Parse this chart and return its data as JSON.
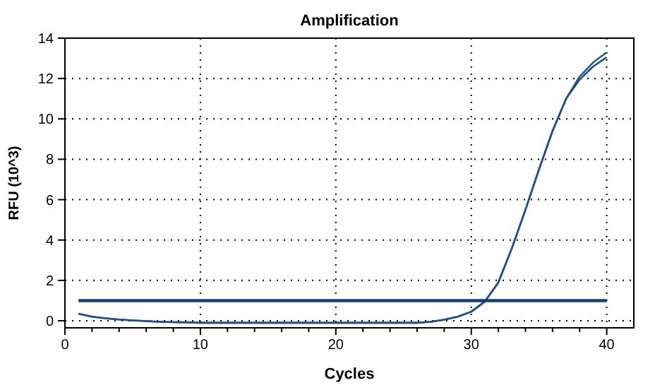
{
  "chart_data": {
    "type": "line",
    "title": "Amplification",
    "xlabel": "Cycles",
    "ylabel": "RFU (10^3)",
    "x": [
      1,
      2,
      3,
      4,
      5,
      6,
      7,
      8,
      9,
      10,
      11,
      12,
      13,
      14,
      15,
      16,
      17,
      18,
      19,
      20,
      21,
      22,
      23,
      24,
      25,
      26,
      27,
      28,
      29,
      30,
      31,
      32,
      33,
      34,
      35,
      36,
      37,
      38,
      39,
      40
    ],
    "series": [
      {
        "color": "#2a5a96",
        "values": [
          0.35,
          0.2,
          0.12,
          0.06,
          0.02,
          -0.02,
          -0.05,
          -0.07,
          -0.08,
          -0.1,
          -0.1,
          -0.1,
          -0.1,
          -0.1,
          -0.1,
          -0.1,
          -0.1,
          -0.1,
          -0.1,
          -0.1,
          -0.1,
          -0.1,
          -0.1,
          -0.1,
          -0.1,
          -0.1,
          -0.05,
          0.05,
          0.2,
          0.45,
          0.95,
          1.9,
          3.6,
          5.5,
          7.5,
          9.4,
          11,
          12.1,
          12.8,
          13.3
        ]
      },
      {
        "color": "#1f4e8c",
        "values": [
          0.35,
          0.2,
          0.12,
          0.06,
          0.02,
          -0.02,
          -0.05,
          -0.07,
          -0.08,
          -0.1,
          -0.1,
          -0.1,
          -0.1,
          -0.1,
          -0.1,
          -0.1,
          -0.1,
          -0.1,
          -0.1,
          -0.1,
          -0.1,
          -0.1,
          -0.1,
          -0.1,
          -0.1,
          -0.1,
          -0.05,
          0.05,
          0.2,
          0.45,
          0.95,
          1.9,
          3.6,
          5.5,
          7.5,
          9.4,
          11,
          11.95,
          12.6,
          13.05
        ]
      }
    ],
    "ref_lines": [
      {
        "axis": "y",
        "value": 1,
        "color": "#0d3f7a"
      }
    ],
    "xlim": [
      0,
      42
    ],
    "xticks": [
      0,
      {
        "value": 2,
        "label": null
      },
      {
        "value": 4,
        "label": null
      },
      {
        "value": 6,
        "label": null
      },
      {
        "value": 8,
        "label": null
      },
      10,
      {
        "value": 12,
        "label": null
      },
      {
        "value": 14,
        "label": null
      },
      {
        "value": 16,
        "label": null
      },
      {
        "value": 18,
        "label": null
      },
      20,
      {
        "value": 22,
        "label": null
      },
      {
        "value": 24,
        "label": null
      },
      {
        "value": 26,
        "label": null
      },
      {
        "value": 28,
        "label": null
      },
      30,
      {
        "value": 32,
        "label": null
      },
      {
        "value": 34,
        "label": null
      },
      {
        "value": 36,
        "label": null
      },
      {
        "value": 38,
        "label": null
      },
      40
    ],
    "ylim": [
      -0.35,
      14
    ],
    "yticks": [
      0,
      2,
      4,
      6,
      8,
      10,
      12,
      14
    ],
    "grid": true,
    "line_style": "solid",
    "marker": "none"
  }
}
